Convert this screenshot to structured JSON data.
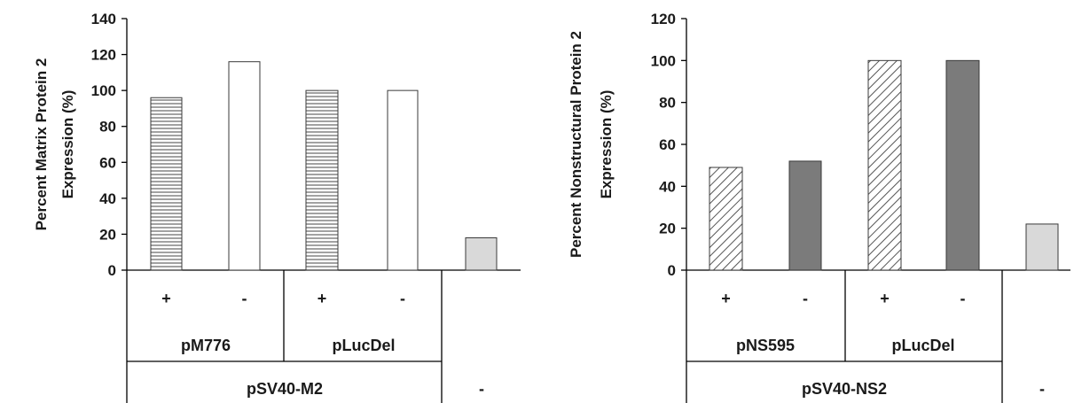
{
  "chart_data": [
    {
      "type": "bar",
      "title": "",
      "ylabel_lines": [
        "Percent Matrix Protein 2",
        "Expression (%)"
      ],
      "ylim": [
        0,
        140
      ],
      "yticks": [
        "0",
        "20",
        "40",
        "60",
        "80",
        "100",
        "120",
        "140"
      ],
      "series": [
        {
          "values": [
            96,
            116,
            100,
            100,
            18
          ]
        }
      ],
      "fill_styles": [
        "hlines",
        "white",
        "hlines",
        "white",
        "lightgray"
      ],
      "level1_labels": [
        "+",
        "-",
        "+",
        "-",
        ""
      ],
      "level2_labels": [
        "pM776",
        "pLucDel"
      ],
      "level3_labels": [
        "pSV40-M2",
        "-"
      ],
      "grid": false,
      "legend": "none"
    },
    {
      "type": "bar",
      "title": "",
      "ylabel_lines": [
        "Percent Nonstructural Protein 2",
        "Expression (%)"
      ],
      "ylim": [
        0,
        120
      ],
      "yticks": [
        "0",
        "20",
        "40",
        "60",
        "80",
        "100",
        "120"
      ],
      "series": [
        {
          "values": [
            49,
            52,
            100,
            100,
            22
          ]
        }
      ],
      "fill_styles": [
        "diag",
        "darkgray",
        "diag",
        "darkgray",
        "lightgray"
      ],
      "level1_labels": [
        "+",
        "-",
        "+",
        "-",
        ""
      ],
      "level2_labels": [
        "pNS595",
        "pLucDel"
      ],
      "level3_labels": [
        "pSV40-NS2",
        "-"
      ],
      "grid": false,
      "legend": "none"
    }
  ],
  "colors": {
    "white_fill": "#ffffff",
    "dark_fill": "#7b7b7b",
    "light_fill": "#d9d9d9",
    "pattern_line": "#7a7a7a",
    "outline": "#3a3a3a"
  }
}
